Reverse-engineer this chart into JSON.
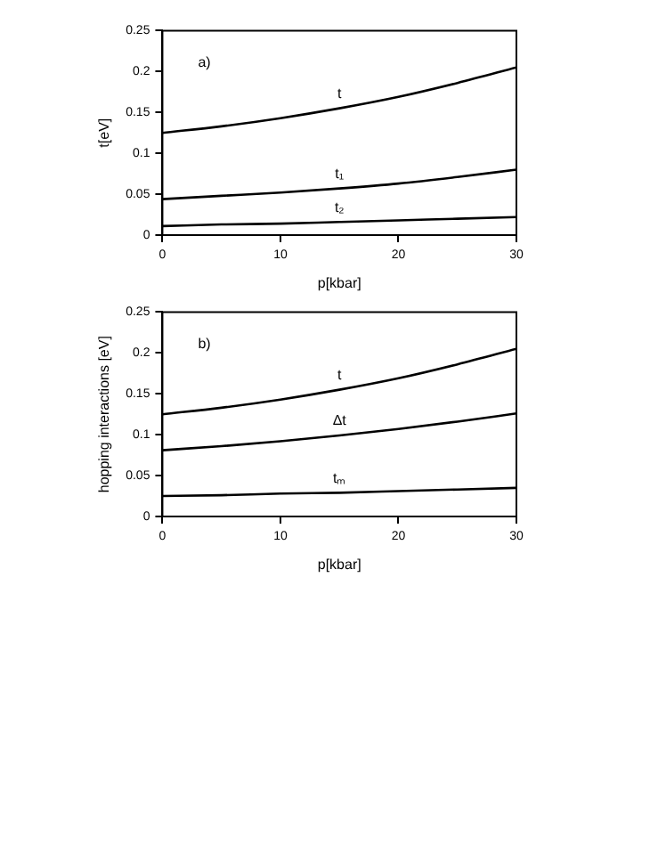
{
  "chart_data": [
    {
      "type": "line",
      "annotations": [
        "a)"
      ],
      "xlabel": "p[kbar]",
      "ylabel": "t[eV]",
      "x": [
        0,
        5,
        10,
        15,
        20,
        25,
        30
      ],
      "xlim": [
        0,
        30
      ],
      "xticks": [
        0,
        10,
        20,
        30
      ],
      "ylim": [
        0,
        0.25
      ],
      "yticks": [
        0,
        0.05,
        0.1,
        0.15,
        0.2,
        0.25
      ],
      "grid": false,
      "legend": false,
      "marker": "none",
      "line_style": "solid",
      "series": [
        {
          "name": "t",
          "color": "#000000",
          "values": [
            0.125,
            0.133,
            0.143,
            0.155,
            0.169,
            0.186,
            0.205
          ]
        },
        {
          "name": "t₁",
          "color": "#000000",
          "values": [
            0.044,
            0.048,
            0.052,
            0.057,
            0.063,
            0.071,
            0.08
          ]
        },
        {
          "name": "t₂",
          "color": "#000000",
          "values": [
            0.011,
            0.013,
            0.014,
            0.016,
            0.018,
            0.02,
            0.022
          ]
        }
      ]
    },
    {
      "type": "line",
      "annotations": [
        "b)"
      ],
      "xlabel": "p[kbar]",
      "ylabel": "hopping interactions [eV]",
      "x": [
        0,
        5,
        10,
        15,
        20,
        25,
        30
      ],
      "xlim": [
        0,
        30
      ],
      "xticks": [
        0,
        10,
        20,
        30
      ],
      "ylim": [
        0,
        0.25
      ],
      "yticks": [
        0,
        0.05,
        0.1,
        0.15,
        0.2,
        0.25
      ],
      "grid": false,
      "legend": false,
      "marker": "none",
      "line_style": "solid",
      "series": [
        {
          "name": "t",
          "color": "#000000",
          "values": [
            0.125,
            0.133,
            0.143,
            0.155,
            0.169,
            0.186,
            0.205
          ]
        },
        {
          "name": "Δt",
          "color": "#000000",
          "values": [
            0.081,
            0.086,
            0.092,
            0.099,
            0.107,
            0.116,
            0.126
          ]
        },
        {
          "name": "tₘ",
          "color": "#000000",
          "values": [
            0.025,
            0.026,
            0.028,
            0.029,
            0.031,
            0.033,
            0.035
          ]
        }
      ]
    }
  ]
}
